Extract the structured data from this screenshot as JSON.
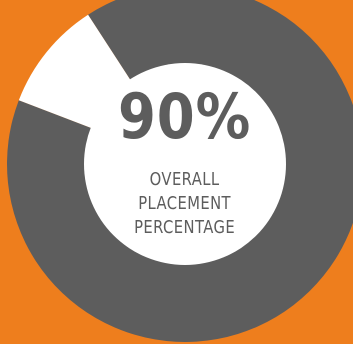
{
  "colors": {
    "background": "#EE7E1D",
    "filled": "#5D5D5D",
    "remaining": "#FFFFFF",
    "inner": "#FFFFFF",
    "text": "#5D5D5D"
  },
  "chart_data": {
    "type": "pie",
    "style": "donut",
    "value": 90,
    "max": 100,
    "value_label": "90%",
    "caption_lines": [
      "OVERALL",
      "PLACEMENT",
      "PERCENTAGE"
    ],
    "slices": [
      {
        "value": 90
      },
      {
        "value": 10
      }
    ]
  }
}
